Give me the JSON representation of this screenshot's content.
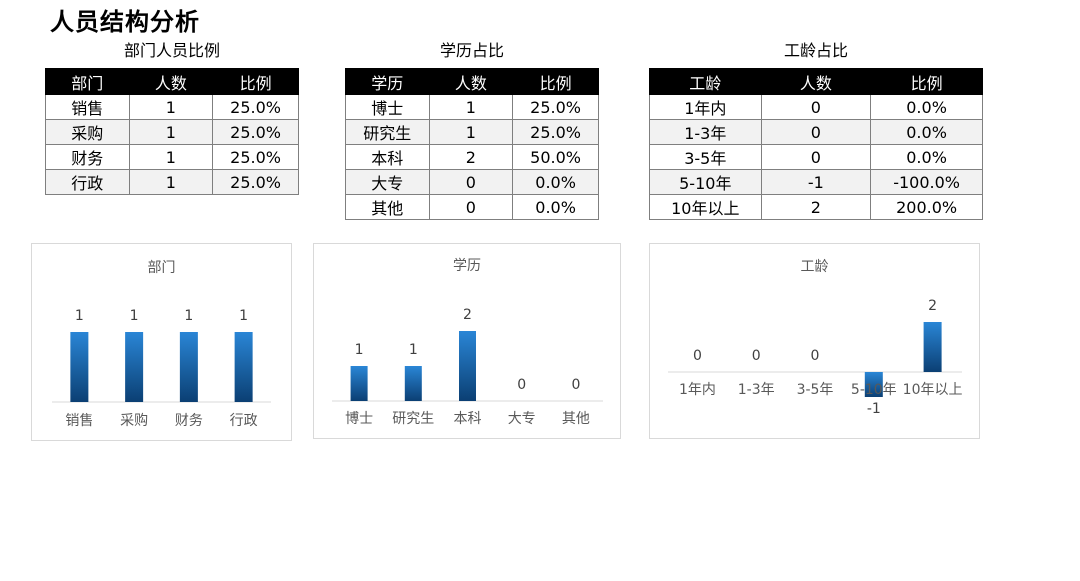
{
  "page_title": "人员结构分析",
  "tables": {
    "dept": {
      "caption": "部门人员比例",
      "headers": [
        "部门",
        "人数",
        "比例"
      ],
      "rows": [
        [
          "销售",
          "1",
          "25.0%"
        ],
        [
          "采购",
          "1",
          "25.0%"
        ],
        [
          "财务",
          "1",
          "25.0%"
        ],
        [
          "行政",
          "1",
          "25.0%"
        ]
      ]
    },
    "edu": {
      "caption": "学历占比",
      "headers": [
        "学历",
        "人数",
        "比例"
      ],
      "rows": [
        [
          "博士",
          "1",
          "25.0%"
        ],
        [
          "研究生",
          "1",
          "25.0%"
        ],
        [
          "本科",
          "2",
          "50.0%"
        ],
        [
          "大专",
          "0",
          "0.0%"
        ],
        [
          "其他",
          "0",
          "0.0%"
        ]
      ]
    },
    "tenure": {
      "caption": "工龄占比",
      "headers": [
        "工龄",
        "人数",
        "比例"
      ],
      "rows": [
        [
          "1年内",
          "0",
          "0.0%"
        ],
        [
          "1-3年",
          "0",
          "0.0%"
        ],
        [
          "3-5年",
          "0",
          "0.0%"
        ],
        [
          "5-10年",
          "-1",
          "-100.0%"
        ],
        [
          "10年以上",
          "2",
          "200.0%"
        ]
      ]
    }
  },
  "chart_data": [
    {
      "type": "bar",
      "title": "部门",
      "categories": [
        "销售",
        "采购",
        "财务",
        "行政"
      ],
      "values": [
        1,
        1,
        1,
        1
      ],
      "ylim": [
        0,
        1.2
      ],
      "grid": false,
      "legend": "none",
      "color": "#1f6fb5"
    },
    {
      "type": "bar",
      "title": "学历",
      "categories": [
        "博士",
        "研究生",
        "本科",
        "大专",
        "其他"
      ],
      "values": [
        1,
        1,
        2,
        0,
        0
      ],
      "ylim": [
        0,
        2.4
      ],
      "grid": false,
      "legend": "none",
      "color": "#1f6fb5"
    },
    {
      "type": "bar",
      "title": "工龄",
      "categories": [
        "1年内",
        "1-3年",
        "3-5年",
        "5-10年",
        "10年以上"
      ],
      "values": [
        0,
        0,
        0,
        -1,
        2
      ],
      "ylim": [
        -1,
        2.6
      ],
      "grid": false,
      "legend": "none",
      "color": "#1f6fb5"
    }
  ]
}
